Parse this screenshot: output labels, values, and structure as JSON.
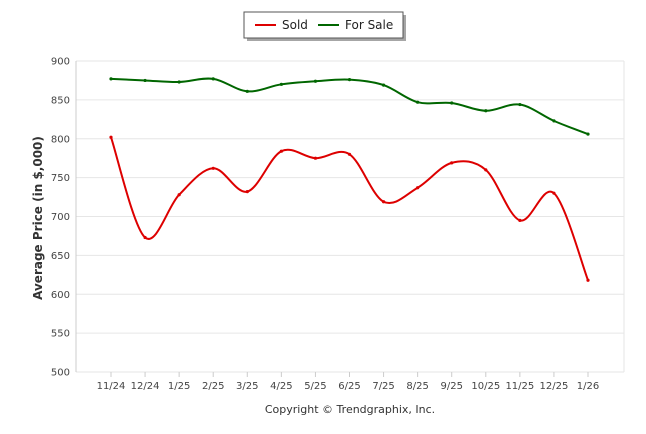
{
  "chart_data": {
    "type": "line",
    "title": "",
    "xlabel": "",
    "ylabel": "Average Price (in $,000)",
    "ylim": [
      500,
      900
    ],
    "yticks": [
      500,
      550,
      600,
      650,
      700,
      750,
      800,
      850,
      900
    ],
    "categories": [
      "11/24",
      "12/24",
      "1/25",
      "2/25",
      "3/25",
      "4/25",
      "5/25",
      "6/25",
      "7/25",
      "8/25",
      "9/25",
      "10/25",
      "11/25",
      "12/25",
      "1/26"
    ],
    "series": [
      {
        "name": "Sold",
        "color": "#dd0000",
        "values": [
          802,
          673,
          728,
          762,
          732,
          784,
          775,
          780,
          719,
          737,
          769,
          760,
          695,
          730,
          618
        ]
      },
      {
        "name": "For Sale",
        "color": "#006600",
        "values": [
          877,
          875,
          873,
          877,
          861,
          870,
          874,
          876,
          869,
          847,
          846,
          836,
          844,
          823,
          806
        ]
      }
    ],
    "legend_position": "top-center",
    "grid": true,
    "credit": "Copyright © Trendgraphix, Inc."
  }
}
